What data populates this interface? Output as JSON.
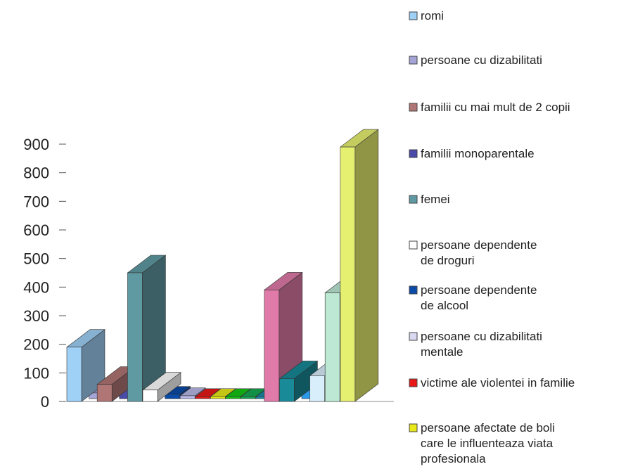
{
  "chart_data": {
    "type": "bar",
    "title": "",
    "xlabel": "",
    "ylabel": "",
    "ylim": [
      0,
      900
    ],
    "yticks": [
      "0",
      "100",
      "200",
      "300",
      "400",
      "500",
      "600",
      "700",
      "800",
      "900"
    ],
    "grid": false,
    "legend_position": "right",
    "bars": [
      {
        "series": "romi",
        "value": 190,
        "color": "#9fd0f5",
        "depth": 0
      },
      {
        "series": "persoane cu dizabilitati",
        "value": 20,
        "color": "#a4a4d6",
        "depth": 1
      },
      {
        "series": "familii cu mai mult de 2 copii",
        "value": 60,
        "color": "#b07575",
        "depth": 0
      },
      {
        "series": "familii monoparentale",
        "value": 40,
        "color": "#4a4aa8",
        "depth": 1
      },
      {
        "series": "femei",
        "value": 450,
        "color": "#5f9aa2",
        "depth": 0
      },
      {
        "series": "persoane dependente de droguri",
        "value": 40,
        "color": "#ffffff",
        "depth": 0
      },
      {
        "series": "persoane dependente de alcool",
        "value": 15,
        "color": "#0a4aa8",
        "depth": 1
      },
      {
        "series": "persoane cu dizabilitati mentale",
        "value": 10,
        "color": "#b8b8e8",
        "depth": 1
      },
      {
        "series": "victime ale violentei in familie",
        "value": 5,
        "color": "#e81818",
        "depth": 1
      },
      {
        "series": "persoane afectate de boli care le influenteaza viata profesionala",
        "value": 5,
        "color": "#e8e81a",
        "depth": 1
      },
      {
        "series": "",
        "value": 5,
        "color": "#14c414",
        "depth": 1
      },
      {
        "series": "",
        "value": 5,
        "color": "#14a850",
        "depth": 1
      },
      {
        "series": "",
        "value": 5,
        "color": "#1a8aa8",
        "depth": 1
      },
      {
        "series": "",
        "value": 390,
        "color": "#e07aa8",
        "depth": 0
      },
      {
        "series": "",
        "value": 80,
        "color": "#188a98",
        "depth": 0
      },
      {
        "series": "",
        "value": 30,
        "color": "#2a9ae8",
        "depth": 1
      },
      {
        "series": "",
        "value": 90,
        "color": "#d8eefa",
        "depth": 0
      },
      {
        "series": "",
        "value": 380,
        "color": "#bde8d4",
        "depth": 0
      },
      {
        "series": "",
        "value": 890,
        "color": "#e6f070",
        "depth": 0
      }
    ],
    "legend": [
      {
        "label": "romi",
        "color": "#9fd0f5"
      },
      {
        "label": "persoane cu dizabilitati",
        "color": "#a4a4d6"
      },
      {
        "label": "familii cu mai mult de 2 copii",
        "color": "#b07575"
      },
      {
        "label": "familii monoparentale",
        "color": "#4a4aa8"
      },
      {
        "label": "femei",
        "color": "#5f9aa2"
      },
      {
        "label": "persoane dependente\nde droguri",
        "color": "#ffffff"
      },
      {
        "label": "persoane dependente\nde alcool",
        "color": "#0a4aa8"
      },
      {
        "label": "persoane cu dizabilitati\nmentale",
        "color": "#d8d8f0"
      },
      {
        "label": "victime ale violentei in familie",
        "color": "#e81818"
      },
      {
        "label": "persoane afectate de boli\ncare le influenteaza viata\nprofesionala",
        "color": "#e8e81a"
      }
    ]
  }
}
